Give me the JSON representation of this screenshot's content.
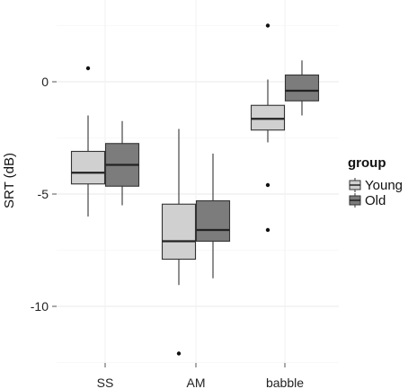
{
  "chart_data": {
    "type": "boxplot",
    "categories": [
      "SS",
      "AM",
      "babble"
    ],
    "ylabel": "SRT (dB)",
    "xlabel": "",
    "ylim": [
      -12.5,
      2.5
    ],
    "yticks": [
      0,
      -5,
      -10
    ],
    "ytick_labels": [
      "0",
      "-5",
      "-10"
    ],
    "grid": true,
    "legend": {
      "title": "group",
      "position": "right"
    },
    "series": [
      {
        "name": "Young",
        "color": "#d0d0d0",
        "boxes": [
          {
            "category": "SS",
            "whisker_low": -6.0,
            "q1": -4.55,
            "median": -4.05,
            "q3": -3.1,
            "whisker_high": -1.5,
            "outliers": [
              0.6
            ]
          },
          {
            "category": "AM",
            "whisker_low": -9.05,
            "q1": -7.9,
            "median": -7.1,
            "q3": -5.45,
            "whisker_high": -2.1,
            "outliers": [
              -12.1
            ]
          },
          {
            "category": "babble",
            "whisker_low": -2.7,
            "q1": -2.15,
            "median": -1.65,
            "q3": -1.05,
            "whisker_high": 0.1,
            "outliers": [
              2.5,
              -4.6,
              -6.6
            ]
          }
        ]
      },
      {
        "name": "Old",
        "color": "#7c7c7c",
        "boxes": [
          {
            "category": "SS",
            "whisker_low": -5.5,
            "q1": -4.65,
            "median": -3.7,
            "q3": -2.75,
            "whisker_high": -1.75,
            "outliers": []
          },
          {
            "category": "AM",
            "whisker_low": -8.75,
            "q1": -7.1,
            "median": -6.6,
            "q3": -5.3,
            "whisker_high": -3.2,
            "outliers": []
          },
          {
            "category": "babble",
            "whisker_low": -1.5,
            "q1": -0.85,
            "median": -0.4,
            "q3": 0.3,
            "whisker_high": 0.95,
            "outliers": []
          }
        ]
      }
    ]
  }
}
